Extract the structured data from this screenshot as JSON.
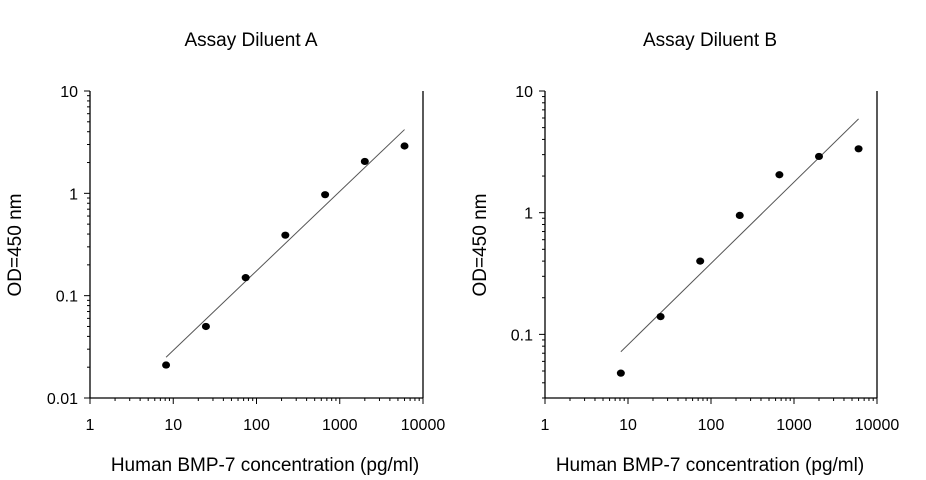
{
  "chart_data": [
    {
      "type": "scatter",
      "title": "Assay Diluent A",
      "xlabel": "Human BMP-7 concentration (pg/ml)",
      "ylabel": "OD=450 nm",
      "xscale": "log",
      "yscale": "log",
      "xlim": [
        1,
        10000
      ],
      "ylim": [
        0.01,
        10
      ],
      "xticks": [
        1,
        10,
        100,
        1000,
        10000
      ],
      "xtick_labels": [
        "1",
        "10",
        "100",
        "1000",
        "10000"
      ],
      "yticks": [
        0.01,
        0.1,
        1,
        10
      ],
      "ytick_labels": [
        "0.01",
        "0.1",
        "1",
        "10"
      ],
      "grid": false,
      "series": [
        {
          "x": [
            8.2,
            24.7,
            74.1,
            222,
            667,
            2000,
            6000
          ],
          "y": [
            0.021,
            0.05,
            0.15,
            0.39,
            0.97,
            2.05,
            2.9
          ]
        }
      ],
      "fit_line": {
        "x": [
          8.2,
          6000
        ],
        "y": [
          0.025,
          4.2
        ]
      }
    },
    {
      "type": "scatter",
      "title": "Assay Diluent B",
      "xlabel": "Human BMP-7 concentration (pg/ml)",
      "ylabel": "OD=450 nm",
      "xscale": "log",
      "yscale": "log",
      "xlim": [
        1,
        10000
      ],
      "ylim": [
        0.03,
        10
      ],
      "xticks": [
        1,
        10,
        100,
        1000,
        10000
      ],
      "xtick_labels": [
        "1",
        "10",
        "100",
        "1000",
        "10000"
      ],
      "yticks": [
        0.1,
        1,
        10
      ],
      "ytick_labels": [
        "0.1",
        "1",
        "10"
      ],
      "grid": false,
      "series": [
        {
          "x": [
            8.2,
            24.7,
            74.1,
            222,
            667,
            2000,
            6000
          ],
          "y": [
            0.048,
            0.14,
            0.4,
            0.95,
            2.05,
            2.9,
            3.35
          ]
        }
      ],
      "fit_line": {
        "x": [
          8.2,
          6000
        ],
        "y": [
          0.072,
          5.9
        ]
      }
    }
  ]
}
